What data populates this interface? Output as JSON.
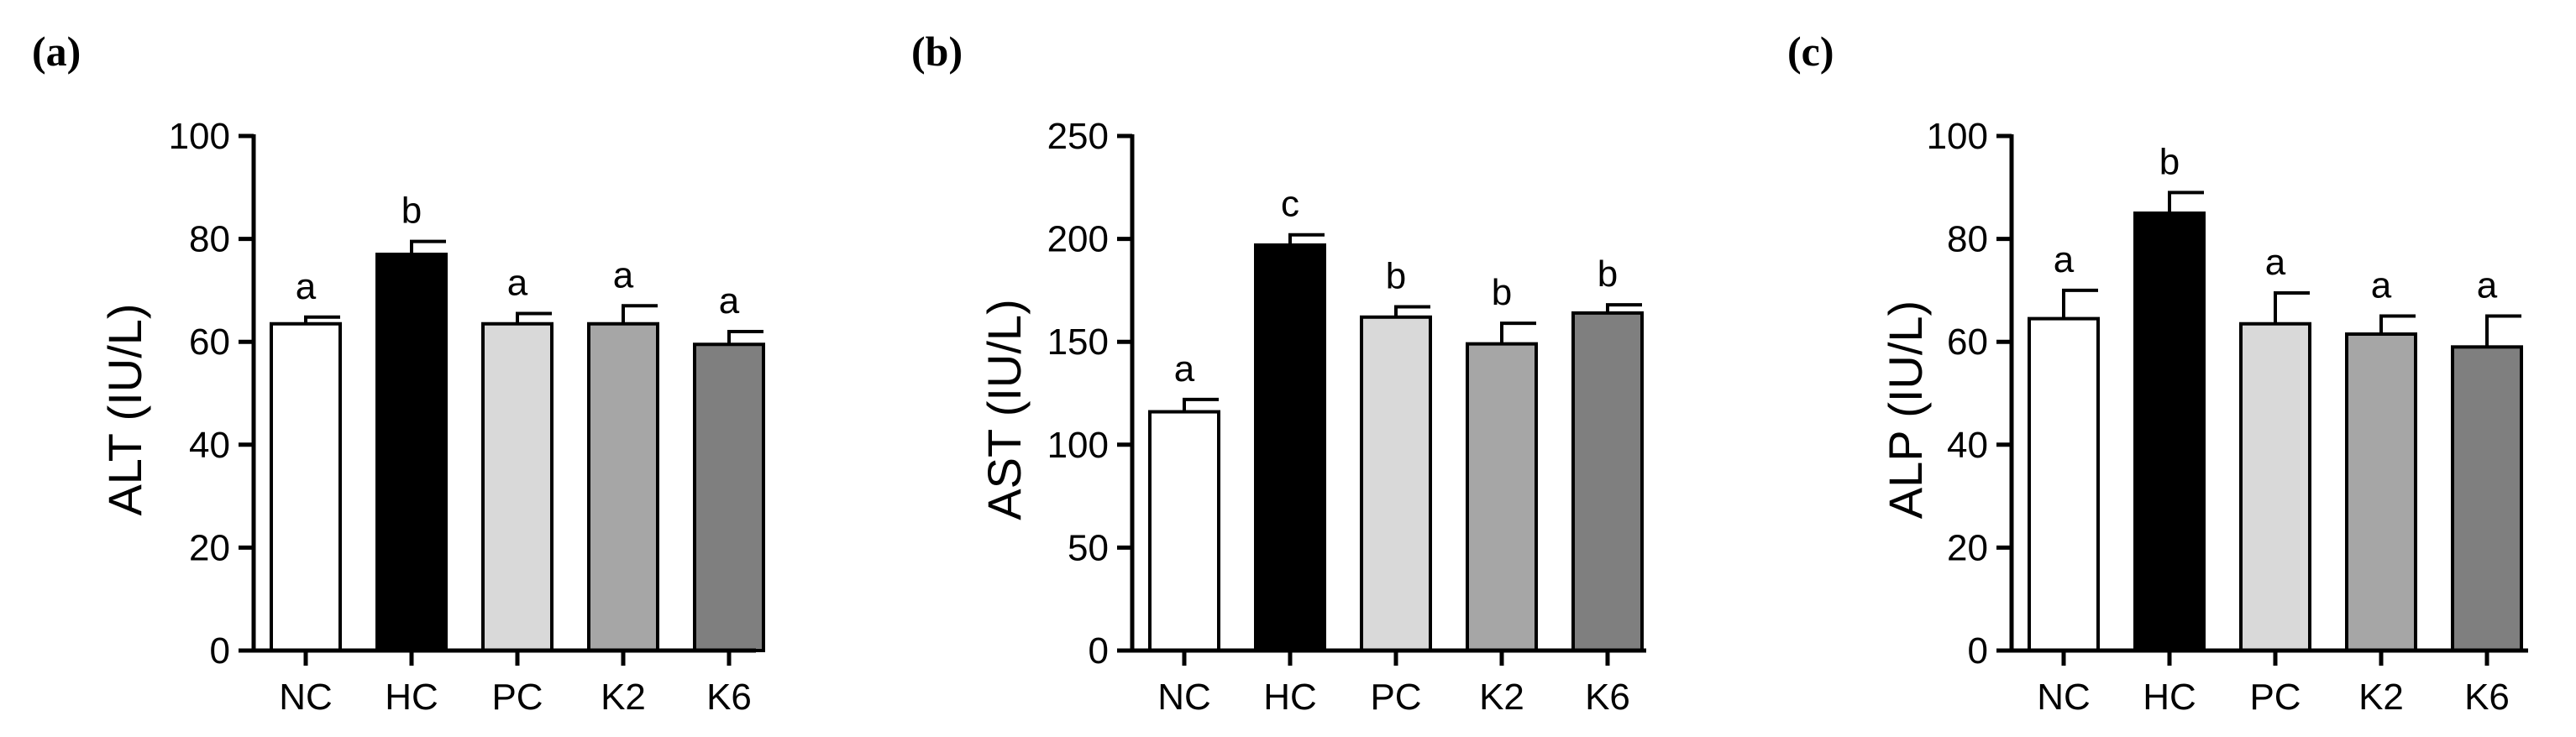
{
  "chart_data": [
    {
      "type": "bar",
      "panel": "(a)",
      "ylabel": "ALT (IU/L)",
      "xlabel": "",
      "ylim": [
        0,
        100
      ],
      "yticks": [
        "0",
        "20",
        "40",
        "60",
        "80",
        "100"
      ],
      "categories": [
        "NC",
        "HC",
        "PC",
        "K2",
        "K6"
      ],
      "values": [
        63.5,
        77,
        63.5,
        63.5,
        59.5
      ],
      "errors": [
        1.3,
        2.5,
        2,
        3.5,
        2.5
      ],
      "letters": [
        "a",
        "b",
        "a",
        "a",
        "a"
      ],
      "colors": [
        "#ffffff",
        "#000000",
        "#d9d9d9",
        "#a6a6a6",
        "#7f7f7f"
      ]
    },
    {
      "type": "bar",
      "panel": "(b)",
      "ylabel": "AST (IU/L)",
      "xlabel": "",
      "ylim": [
        0,
        250
      ],
      "yticks": [
        "0",
        "50",
        "100",
        "150",
        "200",
        "250"
      ],
      "categories": [
        "NC",
        "HC",
        "PC",
        "K2",
        "K6"
      ],
      "values": [
        116,
        197,
        162,
        149,
        164
      ],
      "errors": [
        6,
        5,
        5,
        10,
        4
      ],
      "letters": [
        "a",
        "c",
        "b",
        "b",
        "b"
      ],
      "colors": [
        "#ffffff",
        "#000000",
        "#d9d9d9",
        "#a6a6a6",
        "#7f7f7f"
      ]
    },
    {
      "type": "bar",
      "panel": "(c)",
      "ylabel": "ALP (IU/L)",
      "xlabel": "",
      "ylim": [
        0,
        100
      ],
      "yticks": [
        "0",
        "20",
        "40",
        "60",
        "80",
        "100"
      ],
      "categories": [
        "NC",
        "HC",
        "PC",
        "K2",
        "K6"
      ],
      "values": [
        64.5,
        85,
        63.5,
        61.5,
        59
      ],
      "errors": [
        5.5,
        4,
        6,
        3.5,
        6
      ],
      "letters": [
        "a",
        "b",
        "a",
        "a",
        "a"
      ],
      "colors": [
        "#ffffff",
        "#000000",
        "#d9d9d9",
        "#a6a6a6",
        "#7f7f7f"
      ]
    }
  ]
}
